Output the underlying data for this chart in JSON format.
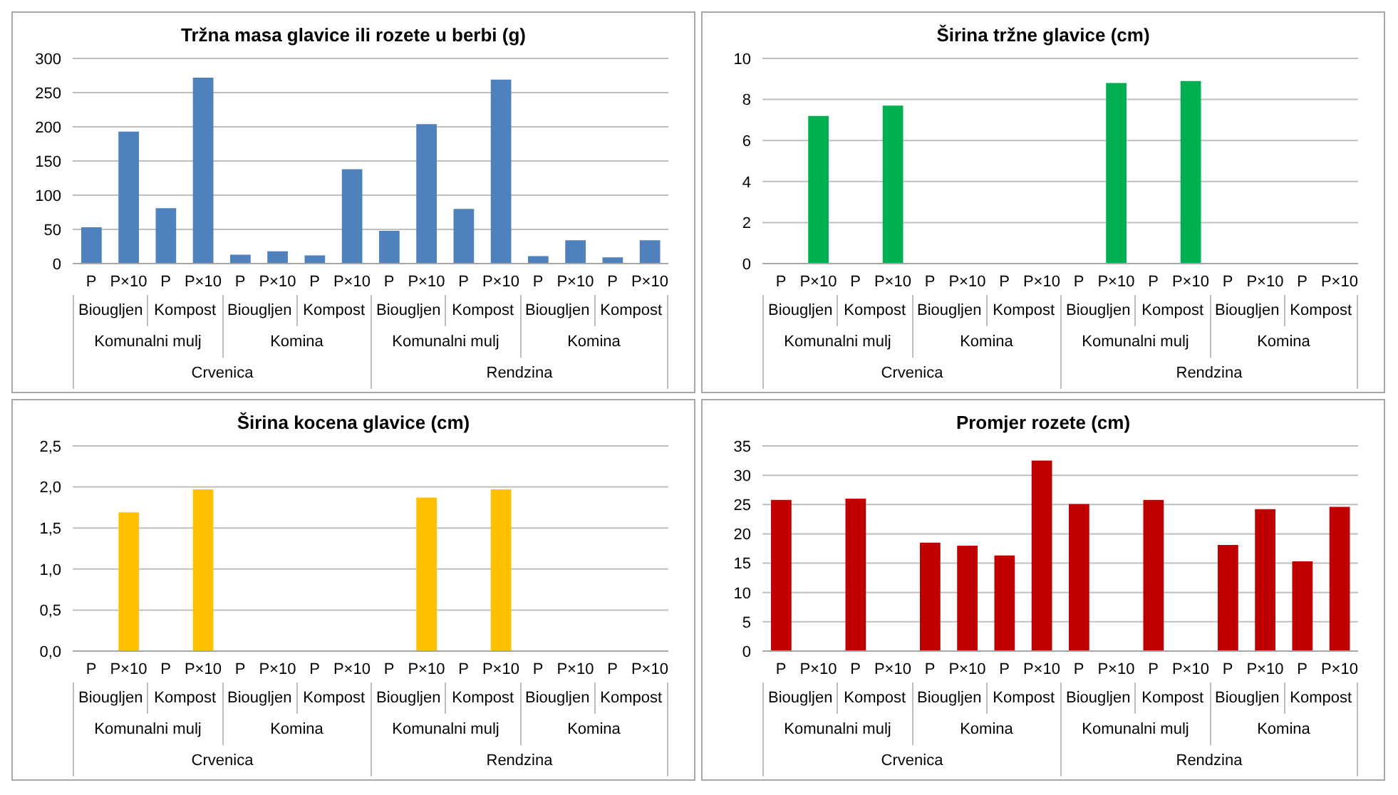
{
  "chart_data": [
    {
      "type": "bar",
      "title": "Tržna masa glavice ili rozete u berbi (g)",
      "categories": [
        "P",
        "P×10",
        "P",
        "P×10",
        "P",
        "P×10",
        "P",
        "P×10",
        "P",
        "P×10",
        "P",
        "P×10",
        "P",
        "P×10",
        "P",
        "P×10"
      ],
      "values": [
        53,
        193,
        81,
        272,
        13,
        18,
        12,
        138,
        48,
        204,
        80,
        269,
        11,
        34,
        9,
        34
      ],
      "color": "#4f81bd",
      "ylim": [
        0,
        300
      ],
      "yticks": [
        0,
        50,
        100,
        150,
        200,
        250,
        300
      ],
      "grid": "y",
      "annotations": [
        "Biougljen",
        "Kompost",
        "Biougljen",
        "Kompost",
        "Biougljen",
        "Kompost",
        "Biougljen",
        "Kompost",
        "Komunalni mulj",
        "Komina",
        "Komunalni mulj",
        "Komina",
        "Crvenica",
        "Rendzina"
      ]
    },
    {
      "type": "bar",
      "title": "Širina tržne glavice (cm)",
      "categories": [
        "P",
        "P×10",
        "P",
        "P×10",
        "P",
        "P×10",
        "P",
        "P×10",
        "P",
        "P×10",
        "P",
        "P×10",
        "P",
        "P×10",
        "P",
        "P×10"
      ],
      "values": [
        null,
        7.2,
        null,
        7.7,
        null,
        null,
        null,
        null,
        null,
        8.8,
        null,
        8.9,
        null,
        null,
        null,
        null
      ],
      "color": "#00b050",
      "ylim": [
        0,
        10
      ],
      "yticks": [
        0,
        2,
        4,
        6,
        8,
        10
      ],
      "grid": "y",
      "annotations": [
        "Biougljen",
        "Kompost",
        "Biougljen",
        "Kompost",
        "Biougljen",
        "Kompost",
        "Biougljen",
        "Kompost",
        "Komunalni mulj",
        "Komina",
        "Komunalni mulj",
        "Komina",
        "Crvenica",
        "Rendzina"
      ]
    },
    {
      "type": "bar",
      "title": "Širina kocena glavice (cm)",
      "categories": [
        "P",
        "P×10",
        "P",
        "P×10",
        "P",
        "P×10",
        "P",
        "P×10",
        "P",
        "P×10",
        "P",
        "P×10",
        "P",
        "P×10",
        "P",
        "P×10"
      ],
      "values": [
        null,
        1.69,
        null,
        1.97,
        null,
        null,
        null,
        null,
        null,
        1.87,
        null,
        1.97,
        null,
        null,
        null,
        null
      ],
      "color": "#ffc000",
      "ylim": [
        0,
        2.5
      ],
      "yticks": [
        {
          "value": 0,
          "label": "0,0"
        },
        {
          "value": 0.5,
          "label": "0,5"
        },
        {
          "value": 1,
          "label": "1,0"
        },
        {
          "value": 1.5,
          "label": "1,5"
        },
        {
          "value": 2,
          "label": "2,0"
        },
        {
          "value": 2.5,
          "label": "2,5"
        }
      ],
      "grid": "y",
      "annotations": [
        "Biougljen",
        "Kompost",
        "Biougljen",
        "Kompost",
        "Biougljen",
        "Kompost",
        "Biougljen",
        "Kompost",
        "Komunalni mulj",
        "Komina",
        "Komunalni mulj",
        "Komina",
        "Crvenica",
        "Rendzina"
      ]
    },
    {
      "type": "bar",
      "title": "Promjer rozete (cm)",
      "categories": [
        "P",
        "P×10",
        "P",
        "P×10",
        "P",
        "P×10",
        "P",
        "P×10",
        "P",
        "P×10",
        "P",
        "P×10",
        "P",
        "P×10",
        "P",
        "P×10"
      ],
      "values": [
        25.8,
        null,
        26.0,
        null,
        18.5,
        18.0,
        16.3,
        32.5,
        25.1,
        null,
        25.8,
        null,
        18.1,
        24.2,
        15.3,
        24.6
      ],
      "color": "#c00000",
      "ylim": [
        0,
        35
      ],
      "yticks": [
        0,
        5,
        10,
        15,
        20,
        25,
        30,
        35
      ],
      "grid": "y",
      "annotations": [
        "Biougljen",
        "Kompost",
        "Biougljen",
        "Kompost",
        "Biougljen",
        "Kompost",
        "Biougljen",
        "Kompost",
        "Komunalni mulj",
        "Komina",
        "Komunalni mulj",
        "Komina",
        "Crvenica",
        "Rendzina"
      ]
    }
  ]
}
